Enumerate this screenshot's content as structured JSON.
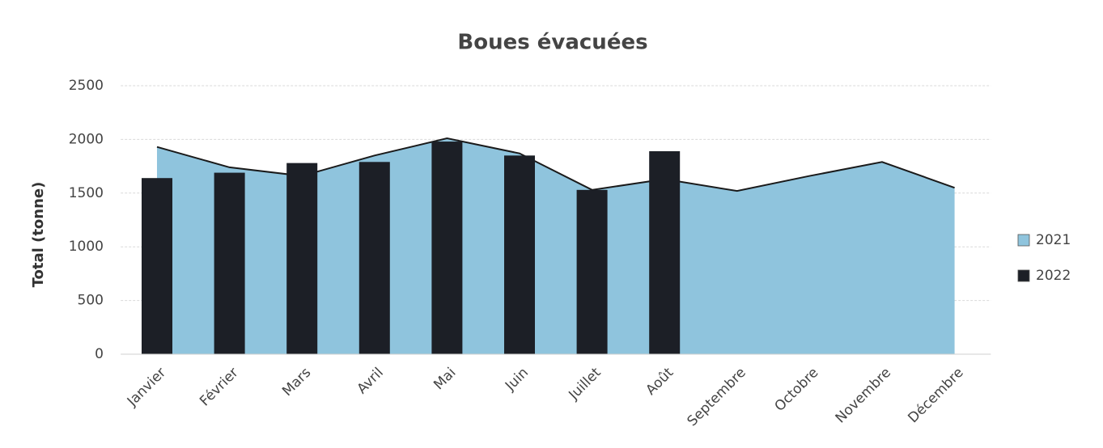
{
  "chart_data": {
    "type": "combo",
    "title": "Boues évacuées",
    "y_label": "Total (tonne)",
    "categories": [
      "Janvier",
      "Février",
      "Mars",
      "Avril",
      "Mai",
      "Juin",
      "Juillet",
      "Août",
      "Septembre",
      "Octobre",
      "Novembre",
      "Décembre"
    ],
    "series": [
      {
        "name": "2021",
        "type": "area",
        "color": "#8fc4dd",
        "values": [
          1930,
          1740,
          1660,
          1850,
          2010,
          1870,
          1530,
          1630,
          1520,
          1660,
          1790,
          1550
        ]
      },
      {
        "name": "2022",
        "type": "bar",
        "color": "#1c1f26",
        "values": [
          1640,
          1690,
          1780,
          1790,
          1980,
          1850,
          1530,
          1890,
          null,
          null,
          null,
          null
        ]
      }
    ],
    "ylim": [
      0,
      2500
    ],
    "yticks": [
      0,
      500,
      1000,
      1500,
      2000,
      2500
    ],
    "grid": true,
    "legend": "right"
  }
}
